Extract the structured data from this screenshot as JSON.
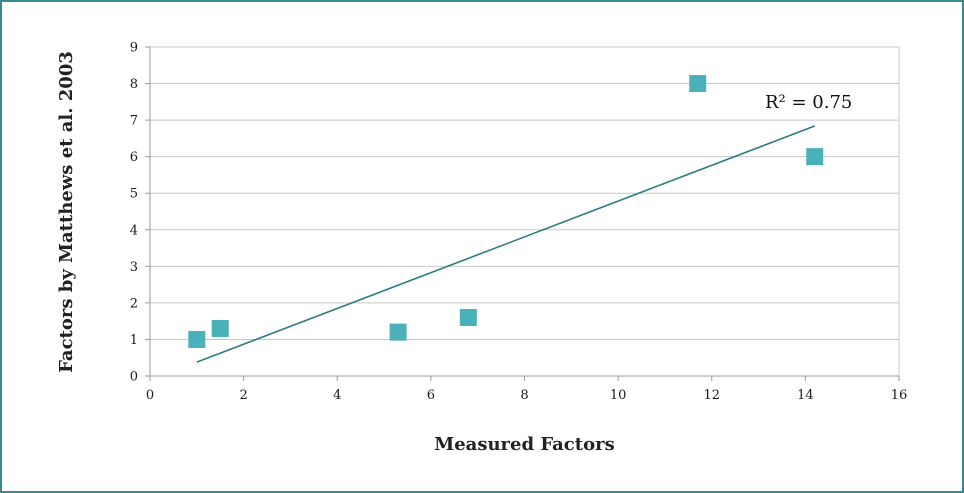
{
  "chart_data": {
    "type": "scatter",
    "title": "",
    "xlabel": "Measured Factors",
    "ylabel": "Factors by Matthews et al. 2003",
    "xlim": [
      0,
      16
    ],
    "ylim": [
      0,
      9
    ],
    "xticks": [
      "0",
      "2",
      "4",
      "6",
      "8",
      "10",
      "12",
      "14",
      "16"
    ],
    "yticks": [
      "0",
      "1",
      "2",
      "3",
      "4",
      "5",
      "6",
      "7",
      "8",
      "9"
    ],
    "grid": "horizontal",
    "points": [
      {
        "x": 1.0,
        "y": 1.0
      },
      {
        "x": 1.5,
        "y": 1.3
      },
      {
        "x": 5.3,
        "y": 1.2
      },
      {
        "x": 6.8,
        "y": 1.6
      },
      {
        "x": 11.7,
        "y": 8.0
      },
      {
        "x": 14.2,
        "y": 6.0
      }
    ],
    "trendline": {
      "type": "linear",
      "x": [
        1.0,
        14.2
      ],
      "y": [
        0.38,
        6.84
      ]
    },
    "annotation": "R² = 0.75",
    "colors": {
      "marker": "#4ab0ba",
      "trendline": "#2e7d82",
      "grid": "#c8c8c8",
      "frame": "#3a8a8c"
    }
  }
}
